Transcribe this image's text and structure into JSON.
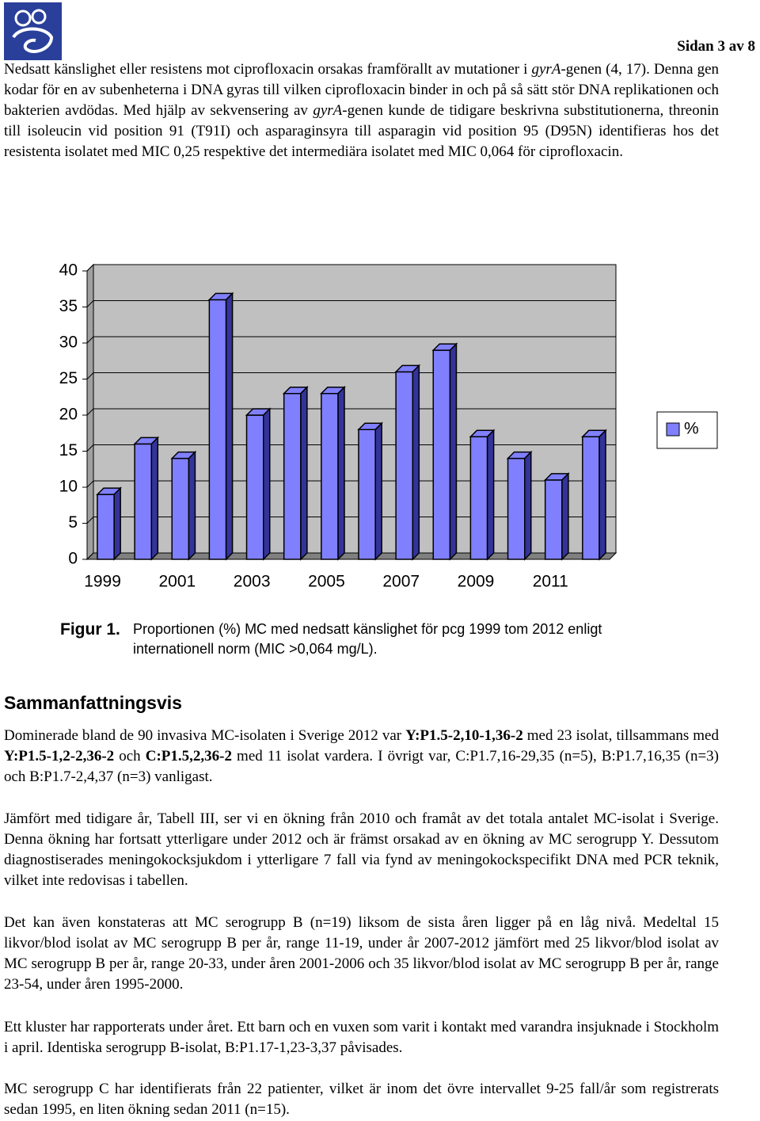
{
  "header": {
    "page_label": "Sidan 3 av 8"
  },
  "intro": [
    "Nedsatt känslighet eller resistens mot ciprofloxacin orsakas framförallt av mutationer i ",
    "gyrA",
    "-genen (4, 17). Denna gen kodar för en av subenheterna i DNA gyras till vilken ciprofloxacin binder in och på så sätt stör DNA replikationen och bakterien avdödas. Med hjälp av sekvensering av ",
    "gyrA",
    "-genen kunde de tidigare beskrivna substitutionerna, threonin till isoleucin vid position 91 (T91I) och asparaginsyra till asparagin vid position 95 (D95N) identifieras hos det resistenta isolatet med MIC 0,25 respektive det intermediära isolatet med MIC 0,064 för ciprofloxacin."
  ],
  "chart_data": {
    "type": "bar3d",
    "categories": [
      "1999",
      null,
      "2001",
      null,
      "2003",
      null,
      "2005",
      null,
      "2007",
      null,
      "2009",
      null,
      "2011",
      null
    ],
    "series": [
      {
        "name": "%",
        "color": "#8080ff",
        "values": [
          9,
          16,
          14,
          36,
          20,
          23,
          23,
          18,
          26,
          29,
          17,
          14,
          11,
          17
        ]
      }
    ],
    "ylim": [
      0,
      40
    ],
    "yticks": [
      0,
      5,
      10,
      15,
      20,
      25,
      30,
      35,
      40
    ],
    "grid": true,
    "legend": "right"
  },
  "caption": {
    "label": "Figur 1.",
    "text": "Proportionen (%) MC med nedsatt känslighet för pcg 1999 tom 2012 enligt internationell norm (MIC >0,064 mg/L)."
  },
  "section": {
    "heading": "Sammanfattningsvis",
    "paragraphs": [
      [
        "Dominerade bland de 90 invasiva MC-isolaten i Sverige 2012 var ",
        "Y:P1.5-2,10-1,36-2",
        " med 23 isolat, tillsammans med ",
        "Y:P1.5-1,2-2,36-2",
        " och ",
        "C:P1.5,2,36-2",
        " med 11 isolat vardera. I övrigt var, C:P1.7,16-29,35 (n=5), B:P1.7,16,35 (n=3) och B:P1.7-2,4,37 (n=3) vanligast."
      ],
      [
        "Jämfört med tidigare år, Tabell III, ser vi en ökning från 2010 och framåt av det totala antalet MC-isolat i Sverige. Denna ökning har fortsatt ytterligare under 2012 och är främst orsakad av en ökning av MC serogrupp Y. Dessutom diagnostiserades meningokocksjukdom i ytterligare 7 fall via fynd av meningokockspecifikt DNA med PCR teknik, vilket inte redovisas i tabellen."
      ],
      [
        "Det kan även konstateras att MC serogrupp B (n=19) liksom de sista åren ligger på en låg nivå. Medeltal 15 likvor/blod isolat av MC serogrupp B per år, range 11-19, under år 2007-2012 jämfört med 25 likvor/blod isolat av MC serogrupp B per år, range 20-33, under åren 2001-2006 och 35 likvor/blod isolat av MC serogrupp B per år, range 23-54, under åren 1995-2000."
      ],
      [
        "Ett kluster har rapporterats under året. Ett barn och en vuxen som varit i kontakt med varandra insjuknade i Stockholm i april. Identiska serogrupp B-isolat, B:P1.17-1,23-3,37 påvisades."
      ],
      [
        "MC serogrupp C har identifierats från 22 patienter, vilket är inom det övre intervallet 9-25 fall/år som registrerats sedan 1995, en liten ökning sedan 2011 (n=15)."
      ]
    ]
  }
}
